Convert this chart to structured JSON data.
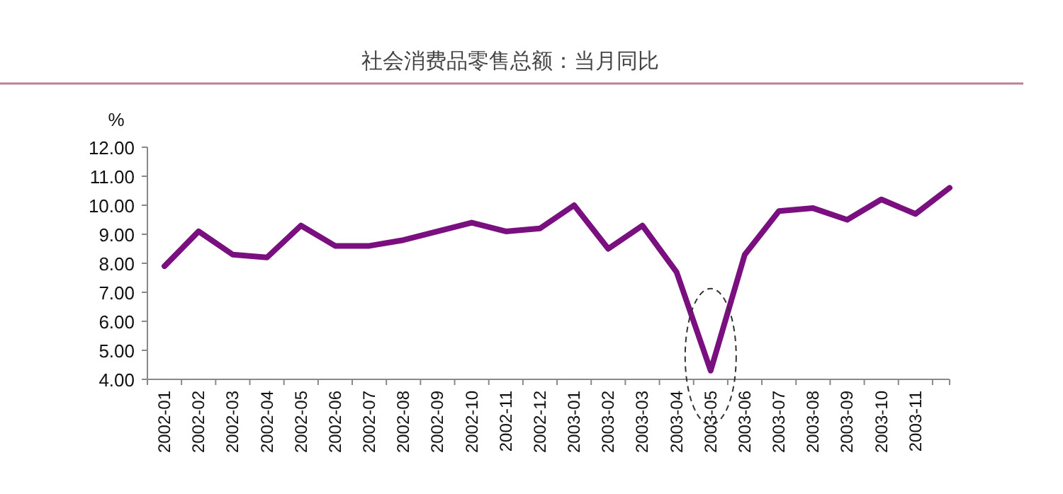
{
  "chart_data": {
    "type": "line",
    "title": "社会消费品零售总额：当月同比",
    "ylabel": "%",
    "categories": [
      "2002-01",
      "2002-02",
      "2002-03",
      "2002-04",
      "2002-05",
      "2002-06",
      "2002-07",
      "2002-08",
      "2002-09",
      "2002-10",
      "2002-11",
      "2002-12",
      "2003-01",
      "2003-02",
      "2003-03",
      "2003-04",
      "2003-05",
      "2003-06",
      "2003-07",
      "2003-08",
      "2003-09",
      "2003-10",
      "2003-11",
      null
    ],
    "series": [
      {
        "color": "#7a0f7f",
        "values": [
          7.9,
          9.1,
          8.3,
          8.2,
          9.3,
          8.6,
          8.6,
          8.8,
          9.1,
          9.4,
          9.1,
          9.2,
          10.0,
          8.5,
          9.3,
          7.7,
          4.3,
          8.3,
          9.8,
          9.9,
          9.5,
          10.2,
          9.7,
          10.6
        ]
      }
    ],
    "ylim": [
      4,
      12
    ],
    "yticks": [
      {
        "value": 4,
        "label": "4.00"
      },
      {
        "value": 5,
        "label": "5.00"
      },
      {
        "value": 6,
        "label": "6.00"
      },
      {
        "value": 7,
        "label": "7.00"
      },
      {
        "value": 8,
        "label": "8.00"
      },
      {
        "value": 9,
        "label": "9.00"
      },
      {
        "value": 10,
        "label": "10.00"
      },
      {
        "value": 11,
        "label": "11.00"
      },
      {
        "value": 12,
        "label": "12.00"
      }
    ],
    "marker": "none",
    "line_style": "solid"
  }
}
